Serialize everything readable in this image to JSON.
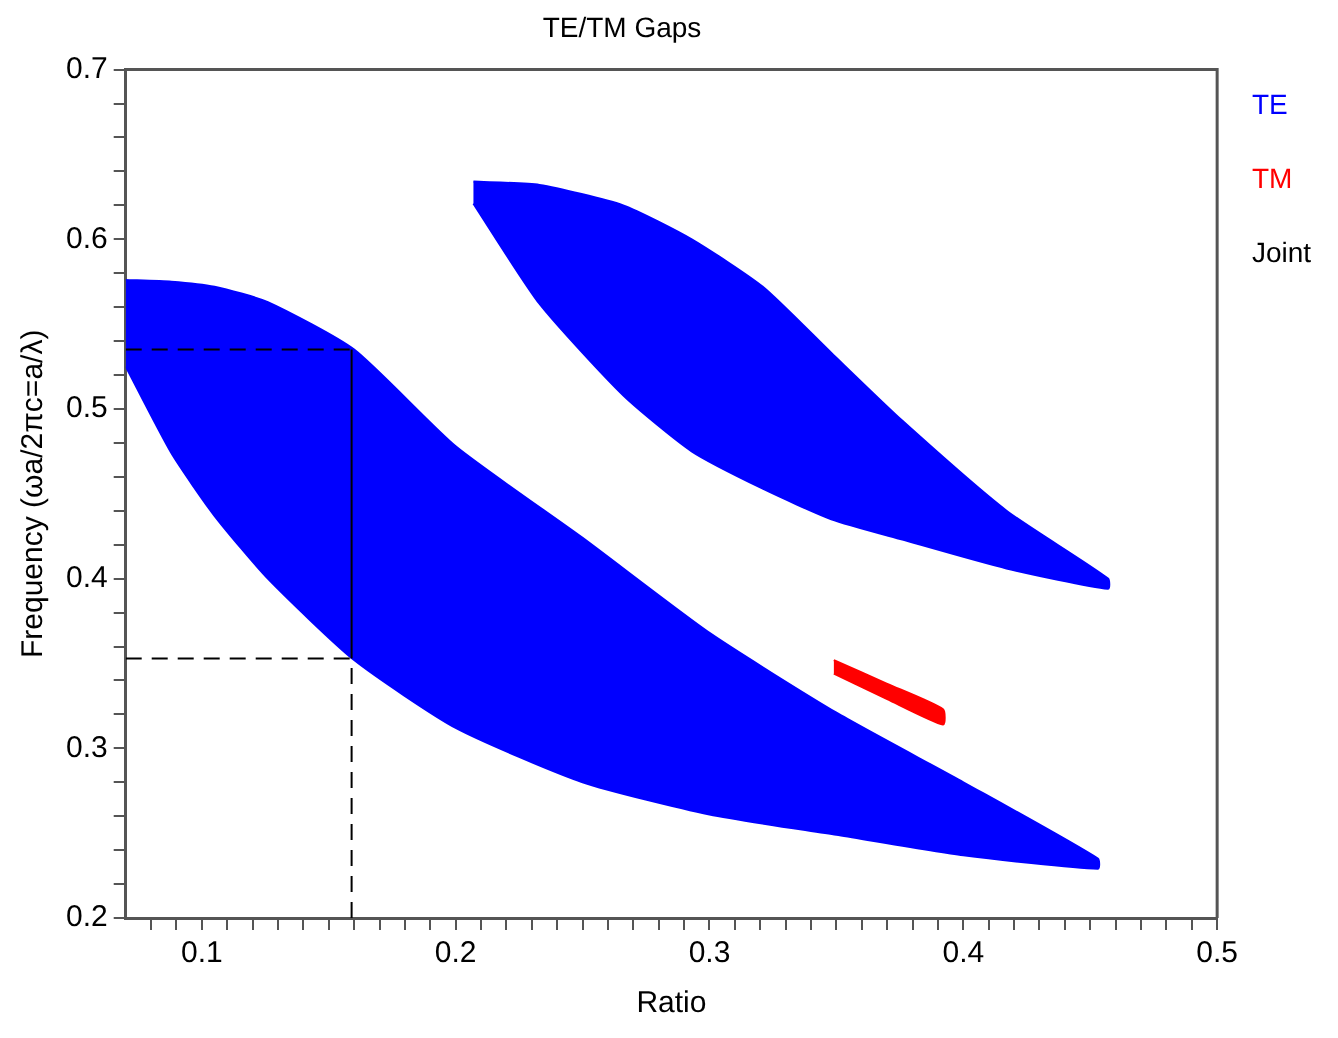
{
  "chart_data": {
    "type": "area",
    "title": "TE/TM Gaps",
    "xlabel": "Ratio",
    "ylabel": "Frequency (ωa/2πc=a/λ)",
    "xlim": [
      0.07,
      0.5
    ],
    "xticks": [
      {
        "value": 0.08,
        "label": null
      },
      {
        "value": 0.09,
        "label": null
      },
      0.1,
      {
        "value": 0.11,
        "label": null
      },
      {
        "value": 0.12,
        "label": null
      },
      {
        "value": 0.13,
        "label": null
      },
      {
        "value": 0.14,
        "label": null
      },
      {
        "value": 0.15,
        "label": null
      },
      {
        "value": 0.16,
        "label": null
      },
      {
        "value": 0.17,
        "label": null
      },
      {
        "value": 0.18,
        "label": null
      },
      {
        "value": 0.19,
        "label": null
      },
      0.2,
      {
        "value": 0.21,
        "label": null
      },
      {
        "value": 0.22,
        "label": null
      },
      {
        "value": 0.23,
        "label": null
      },
      {
        "value": 0.24,
        "label": null
      },
      {
        "value": 0.25,
        "label": null
      },
      {
        "value": 0.26,
        "label": null
      },
      {
        "value": 0.27,
        "label": null
      },
      {
        "value": 0.28,
        "label": null
      },
      {
        "value": 0.29,
        "label": null
      },
      0.3,
      {
        "value": 0.31,
        "label": null
      },
      {
        "value": 0.32,
        "label": null
      },
      {
        "value": 0.33,
        "label": null
      },
      {
        "value": 0.34,
        "label": null
      },
      {
        "value": 0.35,
        "label": null
      },
      {
        "value": 0.36,
        "label": null
      },
      {
        "value": 0.37,
        "label": null
      },
      {
        "value": 0.38,
        "label": null
      },
      {
        "value": 0.39,
        "label": null
      },
      0.4,
      {
        "value": 0.41,
        "label": null
      },
      {
        "value": 0.42,
        "label": null
      },
      {
        "value": 0.43,
        "label": null
      },
      {
        "value": 0.44,
        "label": null
      },
      {
        "value": 0.45,
        "label": null
      },
      {
        "value": 0.46,
        "label": null
      },
      {
        "value": 0.47,
        "label": null
      },
      {
        "value": 0.48,
        "label": null
      },
      {
        "value": 0.49,
        "label": null
      },
      0.5
    ],
    "ylim": [
      0.2,
      0.7
    ],
    "yticks": [
      0.2,
      {
        "value": 0.22,
        "label": null
      },
      {
        "value": 0.24,
        "label": null
      },
      {
        "value": 0.26,
        "label": null
      },
      {
        "value": 0.28,
        "label": null
      },
      0.3,
      {
        "value": 0.32,
        "label": null
      },
      {
        "value": 0.34,
        "label": null
      },
      {
        "value": 0.36,
        "label": null
      },
      {
        "value": 0.38,
        "label": null
      },
      0.4,
      {
        "value": 0.42,
        "label": null
      },
      {
        "value": 0.44,
        "label": null
      },
      {
        "value": 0.46,
        "label": null
      },
      {
        "value": 0.48,
        "label": null
      },
      0.5,
      {
        "value": 0.52,
        "label": null
      },
      {
        "value": 0.54,
        "label": null
      },
      {
        "value": 0.56,
        "label": null
      },
      {
        "value": 0.58,
        "label": null
      },
      0.6,
      {
        "value": 0.62,
        "label": null
      },
      {
        "value": 0.64,
        "label": null
      },
      {
        "value": 0.66,
        "label": null
      },
      {
        "value": 0.68,
        "label": null
      },
      0.7
    ],
    "grid": false,
    "legend": "right",
    "annotations": [
      "Joint"
    ],
    "series": [
      {
        "name": "TE",
        "color": "#0000ff",
        "x": [
          0.07,
          0.088,
          0.105,
          0.126,
          0.16,
          0.2,
          0.25,
          0.3,
          0.35,
          0.4,
          0.453,
          0.453,
          0.4,
          0.35,
          0.3,
          0.25,
          0.2,
          0.16,
          0.126,
          0.105,
          0.088,
          0.07
        ],
        "values": [
          0.576,
          0.575,
          0.572,
          0.563,
          0.535,
          0.478,
          0.424,
          0.368,
          0.321,
          0.28,
          0.235,
          0.229,
          0.237,
          0.249,
          0.261,
          0.28,
          0.312,
          0.352,
          0.4,
          0.437,
          0.474,
          0.525
        ]
      },
      {
        "color": "#0000ff",
        "x": [
          0.207,
          0.233,
          0.266,
          0.293,
          0.321,
          0.348,
          0.376,
          0.417,
          0.457,
          0.457,
          0.417,
          0.376,
          0.348,
          0.321,
          0.293,
          0.266,
          0.233,
          0.207
        ],
        "values": [
          0.634,
          0.632,
          0.62,
          0.6,
          0.572,
          0.533,
          0.493,
          0.44,
          0.4,
          0.394,
          0.406,
          0.423,
          0.435,
          0.453,
          0.475,
          0.508,
          0.562,
          0.621
        ]
      },
      {
        "name": "TM",
        "color": "#ff0000",
        "x": [
          0.349,
          0.37,
          0.392,
          0.392,
          0.37,
          0.349
        ],
        "values": [
          0.352,
          0.338,
          0.323,
          0.314,
          0.329,
          0.344
        ]
      },
      {
        "type": "line",
        "color": "#000000",
        "line_style": "dashed",
        "x": [
          0.07,
          0.159
        ],
        "values": [
          0.535,
          0.535
        ]
      },
      {
        "type": "line",
        "color": "#000000",
        "line_style": "dashed",
        "x": [
          0.07,
          0.159
        ],
        "values": [
          0.353,
          0.353
        ]
      },
      {
        "type": "line",
        "color": "#000000",
        "line_style": "dashed",
        "x": [
          0.159,
          0.159
        ],
        "values": [
          0.2,
          0.353
        ]
      },
      {
        "type": "line",
        "color": "#000000",
        "line_style": "solid",
        "x": [
          0.159,
          0.159
        ],
        "values": [
          0.353,
          0.535
        ]
      }
    ]
  }
}
